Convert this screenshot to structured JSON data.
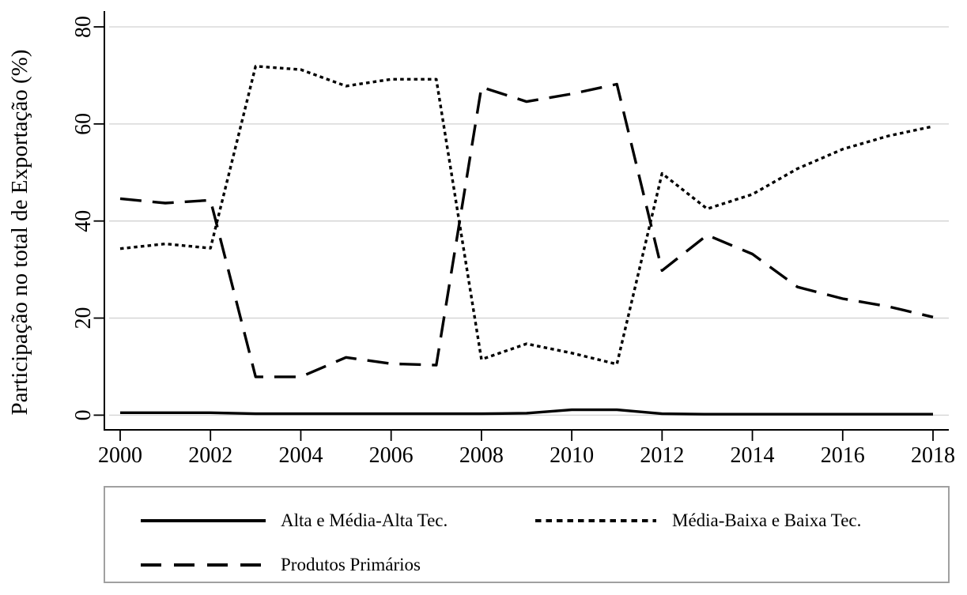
{
  "chart_data": {
    "type": "line",
    "title": "",
    "ylabel": "Participação no total de Exportação (%)",
    "xlabel": "",
    "x": [
      2000,
      2001,
      2002,
      2003,
      2004,
      2005,
      2006,
      2007,
      2008,
      2009,
      2010,
      2011,
      2012,
      2013,
      2014,
      2015,
      2016,
      2017,
      2018
    ],
    "series": [
      {
        "name": "Alta e Média-Alta Tec.",
        "line_style": "solid",
        "values": [
          0.5,
          0.5,
          0.5,
          0.3,
          0.3,
          0.3,
          0.3,
          0.3,
          0.3,
          0.4,
          1.1,
          1.1,
          0.3,
          0.2,
          0.2,
          0.2,
          0.2,
          0.2,
          0.2
        ]
      },
      {
        "name": "Média-Baixa e Baixa Tec.",
        "line_style": "dotted",
        "values": [
          34.3,
          35.3,
          34.4,
          71.9,
          71.2,
          67.8,
          69.2,
          69.2,
          11.5,
          14.7,
          12.8,
          10.5,
          49.8,
          42.5,
          45.5,
          50.8,
          54.8,
          57.5,
          59.5
        ]
      },
      {
        "name": "Produtos Primários",
        "line_style": "longdash",
        "values": [
          44.6,
          43.7,
          44.3,
          7.9,
          7.9,
          11.9,
          10.6,
          10.3,
          67.6,
          64.6,
          66.2,
          68.2,
          29.8,
          37.1,
          33.2,
          26.4,
          24.0,
          22.4,
          20.2
        ]
      }
    ],
    "xticks": [
      2000,
      2002,
      2004,
      2006,
      2008,
      2010,
      2012,
      2014,
      2016,
      2018
    ],
    "yticks": [
      0,
      20,
      40,
      60,
      80
    ],
    "xlim": [
      1999.65,
      2018.35
    ],
    "ylim": [
      0,
      80
    ],
    "grid": true,
    "legend_position": "bottom",
    "line_color": "#000000",
    "grid_color": "#d2d2d2",
    "axis_color": "#000000",
    "background_color": "#ffffff",
    "legend_border_color": "#a0a0a0"
  }
}
